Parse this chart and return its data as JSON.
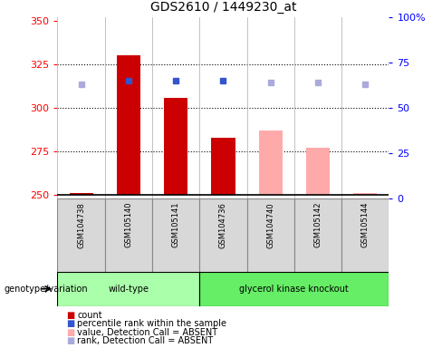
{
  "title": "GDS2610 / 1449230_at",
  "samples": [
    "GSM104738",
    "GSM105140",
    "GSM105141",
    "GSM104736",
    "GSM104740",
    "GSM105142",
    "GSM105144"
  ],
  "bar_values": [
    251,
    330,
    306,
    283,
    287,
    277,
    251
  ],
  "bar_colors": [
    "#cc0000",
    "#cc0000",
    "#cc0000",
    "#cc0000",
    "#ffaaaa",
    "#ffaaaa",
    "#ffaaaa"
  ],
  "rank_values": [
    63,
    65,
    65,
    65,
    64,
    64,
    63
  ],
  "rank_colors": [
    "#aaaadd",
    "#3355cc",
    "#3355cc",
    "#3355cc",
    "#aaaadd",
    "#aaaadd",
    "#aaaadd"
  ],
  "ylim_left": [
    248,
    352
  ],
  "ylim_right": [
    0,
    100
  ],
  "yticks_left": [
    250,
    275,
    300,
    325,
    350
  ],
  "yticks_right": [
    0,
    25,
    50,
    75,
    100
  ],
  "ytick_labels_right": [
    "0",
    "25",
    "50",
    "75",
    "100%"
  ],
  "group1_label": "wild-type",
  "group2_label": "glycerol kinase knockout",
  "group1_count": 3,
  "group2_count": 4,
  "genotype_label": "genotype/variation",
  "legend": [
    {
      "label": "count",
      "color": "#cc0000"
    },
    {
      "label": "percentile rank within the sample",
      "color": "#3355cc"
    },
    {
      "label": "value, Detection Call = ABSENT",
      "color": "#ffaaaa"
    },
    {
      "label": "rank, Detection Call = ABSENT",
      "color": "#aaaadd"
    }
  ],
  "bar_bottom": 250,
  "bar_width": 0.5,
  "plot_bg": "#ffffff",
  "grid_color": "black",
  "grid_linestyle": "dotted",
  "grid_linewidth": 0.8,
  "sep_color": "#aaaaaa",
  "sep_linewidth": 0.5,
  "sample_box_color": "#d8d8d8",
  "sample_box_edge": "#888888",
  "group_bg1": "#aaffaa",
  "group_bg2": "#66ee66",
  "label_fontsize": 7,
  "title_fontsize": 10,
  "tick_fontsize": 8,
  "sample_fontsize": 6
}
